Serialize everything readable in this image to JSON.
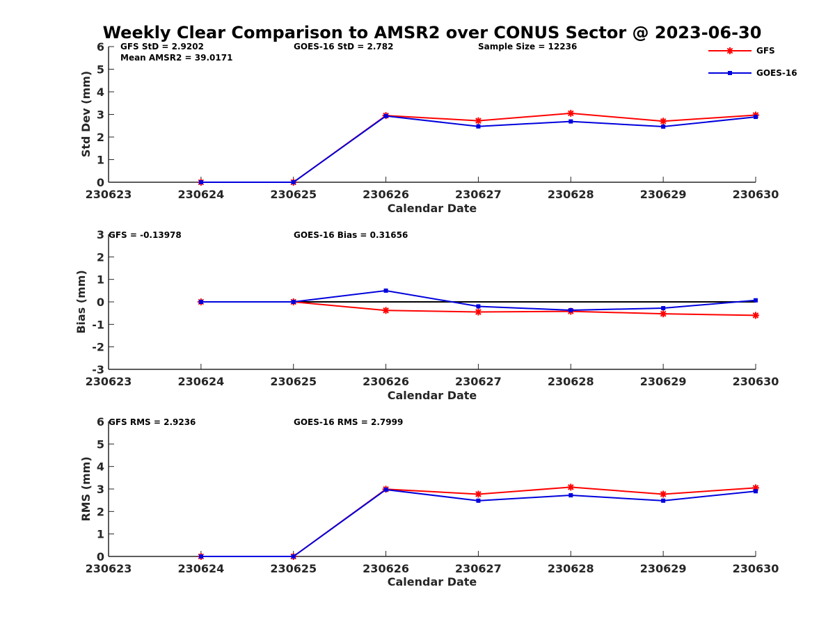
{
  "figure_title": "Weekly Clear Comparison to AMSR2 over CONUS Sector @ 2023-06-30",
  "legend": {
    "position": "top-right",
    "entries": [
      {
        "label": "GFS",
        "color": "#e41a1c",
        "marker": "asterisk"
      },
      {
        "label": "GOES-16",
        "color": "#0000cc",
        "marker": "square"
      }
    ]
  },
  "colors": {
    "gfs": "#ff0000",
    "goes": "#0000dd",
    "zero_line": "#000000",
    "axis": "#262626"
  },
  "panels": [
    {
      "annotations": [
        "GFS StD = 2.9202",
        "Mean AMSR2 = 39.0171",
        "GOES-16 StD = 2.782",
        "Sample Size = 12236"
      ]
    },
    {
      "annotations": [
        "GFS = -0.13978",
        "GOES-16 Bias  = 0.31656"
      ]
    },
    {
      "annotations": [
        "GFS RMS = 2.9236",
        "GOES-16 RMS = 2.7999"
      ]
    }
  ],
  "chart_data": [
    {
      "type": "line",
      "title": "Weekly Clear Comparison to AMSR2 over CONUS Sector @ 2023-06-30",
      "xlabel": "Calendar Date",
      "ylabel": "Std Dev (mm)",
      "categories": [
        "230623",
        "230624",
        "230625",
        "230626",
        "230627",
        "230628",
        "230629",
        "230630"
      ],
      "ylim": [
        0,
        6
      ],
      "yticks": [
        0,
        1,
        2,
        3,
        4,
        5,
        6
      ],
      "zero_line": false,
      "series": [
        {
          "name": "GFS",
          "values": [
            null,
            0,
            0,
            2.95,
            2.72,
            3.05,
            2.7,
            2.97
          ]
        },
        {
          "name": "GOES-16",
          "values": [
            null,
            0,
            0,
            2.93,
            2.47,
            2.69,
            2.46,
            2.89
          ]
        }
      ]
    },
    {
      "type": "line",
      "xlabel": "Calendar Date",
      "ylabel": "Bias (mm)",
      "categories": [
        "230623",
        "230624",
        "230625",
        "230626",
        "230627",
        "230628",
        "230629",
        "230630"
      ],
      "ylim": [
        -3,
        3
      ],
      "yticks": [
        -3,
        -2,
        -1,
        0,
        1,
        2,
        3
      ],
      "zero_line": true,
      "series": [
        {
          "name": "GFS",
          "values": [
            null,
            0,
            0,
            -0.38,
            -0.45,
            -0.42,
            -0.53,
            -0.6
          ]
        },
        {
          "name": "GOES-16",
          "values": [
            null,
            0,
            0,
            0.5,
            -0.2,
            -0.37,
            -0.28,
            0.07
          ]
        }
      ]
    },
    {
      "type": "line",
      "xlabel": "Calendar Date",
      "ylabel": "RMS (mm)",
      "categories": [
        "230623",
        "230624",
        "230625",
        "230626",
        "230627",
        "230628",
        "230629",
        "230630"
      ],
      "ylim": [
        0,
        6
      ],
      "yticks": [
        0,
        1,
        2,
        3,
        4,
        5,
        6
      ],
      "zero_line": false,
      "series": [
        {
          "name": "GFS",
          "values": [
            null,
            0,
            0,
            2.99,
            2.77,
            3.08,
            2.77,
            3.05
          ]
        },
        {
          "name": "GOES-16",
          "values": [
            null,
            0,
            0,
            2.97,
            2.48,
            2.72,
            2.48,
            2.9
          ]
        }
      ]
    }
  ]
}
